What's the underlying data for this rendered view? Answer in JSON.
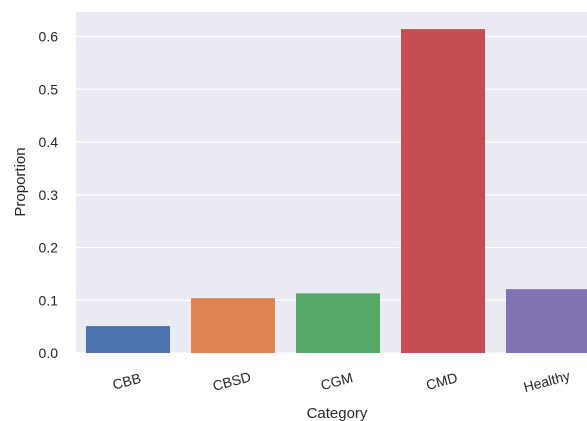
{
  "chart_data": {
    "type": "bar",
    "xlabel": "Category",
    "ylabel": "Proportion",
    "categories": [
      "CBB",
      "CBSD",
      "CGM",
      "CMD",
      "Healthy"
    ],
    "values": [
      0.051,
      0.104,
      0.113,
      0.614,
      0.121
    ],
    "colors": [
      "#4c72b0",
      "#dd8452",
      "#55a868",
      "#c44e52",
      "#8172b3"
    ],
    "ylim": [
      0,
      0.65
    ],
    "yticks": [
      0.0,
      0.1,
      0.2,
      0.3,
      0.4,
      0.5,
      0.6
    ],
    "ytick_labels": [
      "0.0",
      "0.1",
      "0.2",
      "0.3",
      "0.4",
      "0.5",
      "0.6"
    ],
    "grid": true,
    "background": "#eaeaf2",
    "grid_color": "#ffffff",
    "tick_label_rotation_deg": -15
  }
}
